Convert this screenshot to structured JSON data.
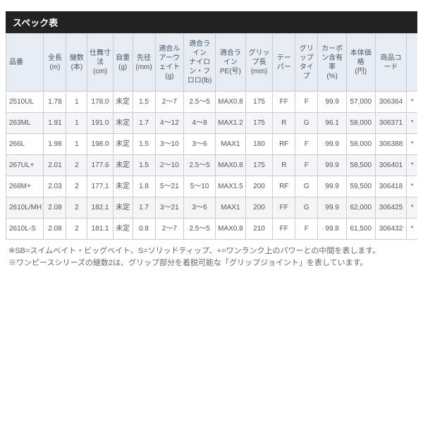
{
  "title": "スペック表",
  "spec_table": {
    "type": "table",
    "background_color": "#ffffff",
    "header_bg": "#e8edf3",
    "alt_row_bg": "#f3f5f7",
    "border_color": "#cccccc",
    "header_text_color": "#445566",
    "cell_text_color": "#555555",
    "font_size_header": 10,
    "font_size_cell": 10,
    "columns": [
      "品番",
      "全長\n(m)",
      "継数\n(本)",
      "仕舞寸法\n(cm)",
      "自重\n(g)",
      "先径\n(mm)",
      "適合ルアーウェイト\n(g)",
      "適合ライン\nナイロン・フロロ(lb)",
      "適合ライン\nPE(号)",
      "グリップ長\n(mm)",
      "テーパー",
      "グリップタイプ",
      "カーボン含有率\n(%)",
      "本体価格\n(円)",
      "商品コード",
      ""
    ],
    "rows": [
      [
        "2510UL",
        "1.78",
        "1",
        "178.0",
        "未定",
        "1.5",
        "2～7",
        "2.5～5",
        "MAX0.8",
        "175",
        "FF",
        "F",
        "99.9",
        "57,000",
        "306364",
        "*"
      ],
      [
        "263ML",
        "1.91",
        "1",
        "191.0",
        "未定",
        "1.7",
        "4～12",
        "4～8",
        "MAX1.2",
        "175",
        "R",
        "G",
        "96.1",
        "58,000",
        "306371",
        "*"
      ],
      [
        "266L",
        "1.98",
        "1",
        "198.0",
        "未定",
        "1.5",
        "3～10",
        "3～6",
        "MAX1",
        "180",
        "RF",
        "F",
        "99.9",
        "58,000",
        "306388",
        "*"
      ],
      [
        "267UL+",
        "2.01",
        "2",
        "177.6",
        "未定",
        "1.5",
        "2～10",
        "2.5～5",
        "MAX0.8",
        "175",
        "R",
        "F",
        "99.9",
        "58,500",
        "306401",
        "*"
      ],
      [
        "268M+",
        "2.03",
        "2",
        "177.1",
        "未定",
        "1.8",
        "5～21",
        "5～10",
        "MAX1.5",
        "200",
        "RF",
        "G",
        "99.9",
        "59,500",
        "306418",
        "*"
      ],
      [
        "2610L/MH",
        "2.08",
        "2",
        "182.1",
        "未定",
        "1.7",
        "3～21",
        "3～6",
        "MAX1",
        "200",
        "FF",
        "G",
        "99.9",
        "62,000",
        "306425",
        "*"
      ],
      [
        "2610L-S",
        "2.08",
        "2",
        "181.1",
        "未定",
        "0.8",
        "2～7",
        "2.5～5",
        "MAX0.8",
        "210",
        "FF",
        "F",
        "99.8",
        "61,500",
        "306432",
        "*"
      ]
    ]
  },
  "footnotes": [
    "※SB=スイムベイト・ビッグベイト、S=ソリッドティップ、+=ワンランク上のパワーとの中間を表します。",
    "※ワンピースシリーズの継数2は、グリップ部分を着脱可能な「グリップジョイント」を表しています。"
  ]
}
